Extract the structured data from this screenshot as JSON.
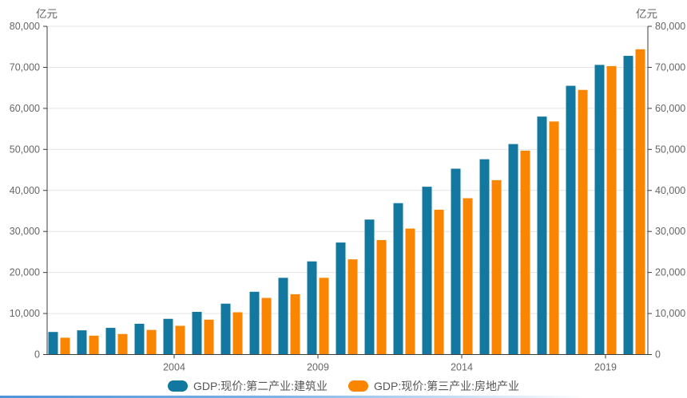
{
  "chart_data": {
    "type": "bar",
    "title": "",
    "ylabel_left": "亿元",
    "ylabel_right": "亿元",
    "ylim": [
      0,
      80000
    ],
    "ytick_step": 10000,
    "y_tick_labels": [
      "0",
      "10,000",
      "20,000",
      "30,000",
      "40,000",
      "50,000",
      "60,000",
      "70,000",
      "80,000"
    ],
    "grid": true,
    "legend_position": "bottom",
    "dual_axis": true,
    "categories": [
      "2000",
      "2001",
      "2002",
      "2003",
      "2004",
      "2005",
      "2006",
      "2007",
      "2008",
      "2009",
      "2010",
      "2011",
      "2012",
      "2013",
      "2014",
      "2015",
      "2016",
      "2017",
      "2018",
      "2019",
      "2020"
    ],
    "x_tick_labels_visible": [
      "2004",
      "2009",
      "2014",
      "2019"
    ],
    "series": [
      {
        "name": "GDP:现价:第二产业:建筑业",
        "color": "#1278a0",
        "values": [
          5500,
          5900,
          6500,
          7500,
          8700,
          10400,
          12400,
          15300,
          18700,
          22700,
          27300,
          32900,
          36900,
          40900,
          45300,
          47600,
          51300,
          58000,
          65500,
          70600,
          72800
        ]
      },
      {
        "name": "GDP:现价:第三产业:房地产业",
        "color": "#fa8500",
        "values": [
          4100,
          4600,
          5000,
          6000,
          7000,
          8500,
          10300,
          13800,
          14700,
          18700,
          23200,
          27900,
          30700,
          35300,
          38100,
          42500,
          49700,
          56800,
          64500,
          70300,
          74400
        ]
      }
    ],
    "colors": {
      "gridline": "#e4e4e4",
      "axis_line": "#3c3c3c",
      "tick_label": "#666666",
      "legend_text": "#555555",
      "bottom_accent": "#4e93d9"
    }
  }
}
